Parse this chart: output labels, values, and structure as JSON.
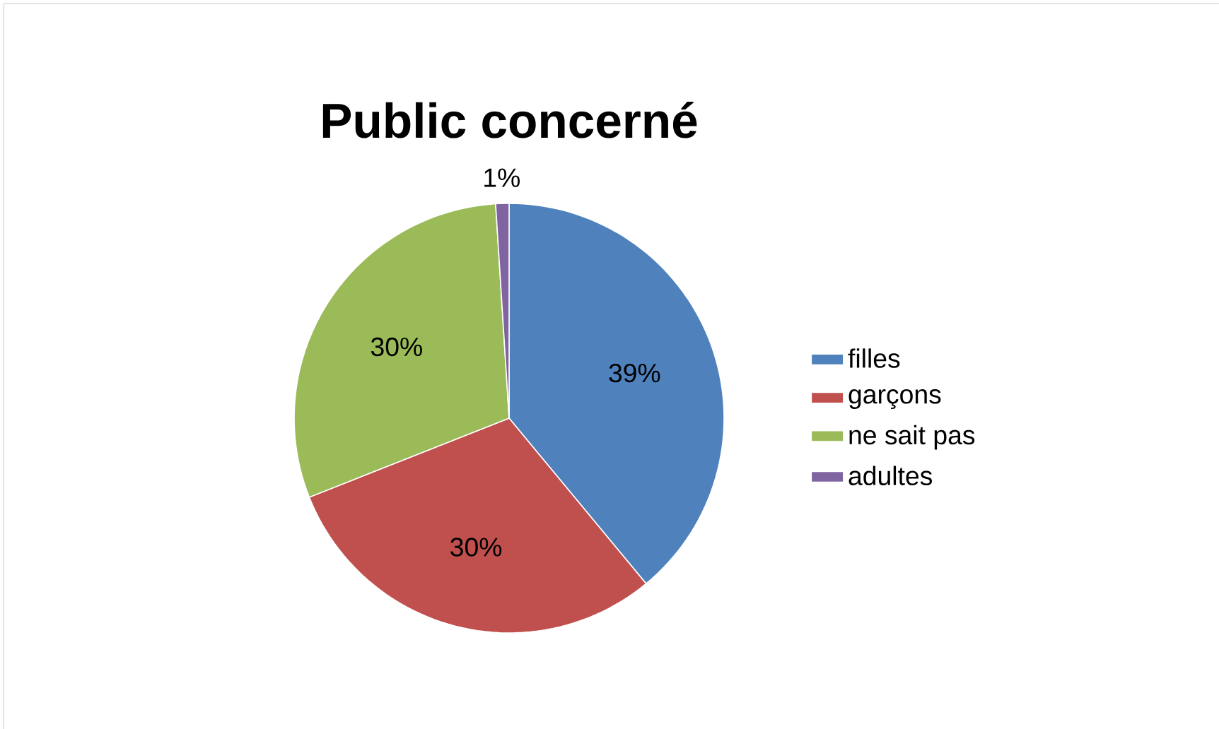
{
  "chart_data": {
    "type": "pie",
    "title": "Public concerné",
    "categories": [
      "filles",
      "garçons",
      "ne sait pas",
      "adultes"
    ],
    "values": [
      39,
      30,
      30,
      1
    ],
    "colors": [
      "#4f81bd",
      "#c0504d",
      "#9bbb59",
      "#8064a2"
    ],
    "value_labels": [
      "39%",
      "30%",
      "30%",
      "1%"
    ],
    "legend": "right"
  }
}
